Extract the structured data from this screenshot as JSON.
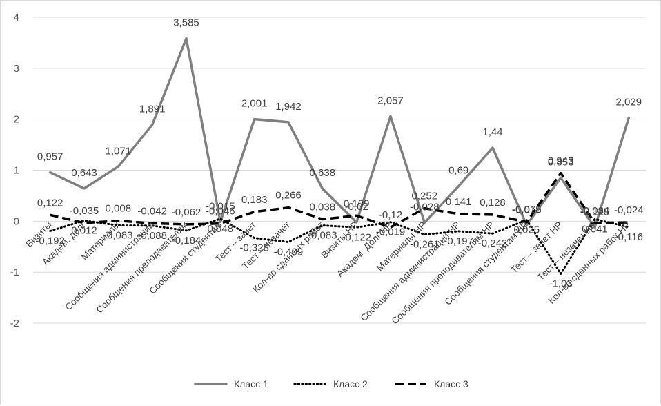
{
  "chart_data": {
    "type": "line",
    "title": "",
    "xlabel": "",
    "ylabel": "",
    "ylim": [
      -2,
      4
    ],
    "yticks": [
      "-2",
      "-1",
      "0",
      "1",
      "2",
      "3",
      "4"
    ],
    "grid": "horizontal",
    "legend_position": "bottom",
    "categories": [
      "Визиты",
      "Академ. долг",
      "Материалы",
      "Сообщения администрации",
      "Сообщения преподавателям",
      "Сообщения студентам",
      "Тест – зачет",
      "Тест – незачет",
      "Кол-во сданных работ",
      "Визиты НР",
      "Академ. Долг НР",
      "Материалы НР",
      "Сообщения администрации НР",
      "Сообщения преподавателям НР",
      "Сообщения студентам НР",
      "Тест – зачет НР",
      "Тест – незачет НР",
      "Кол-во сданных работ НР"
    ],
    "series": [
      {
        "name": "Класс 1",
        "color": "#7f7f7f",
        "style": "solid",
        "values": [
          0.957,
          0.643,
          1.071,
          1.891,
          3.585,
          -0.015,
          2.001,
          1.942,
          0.638,
          -0.02,
          2.057,
          -0.028,
          0.69,
          1.44,
          -0.075,
          0.853,
          -0.125,
          2.029
        ],
        "labels": [
          "0,957",
          "0,643",
          "1,071",
          "1,891",
          "3,585",
          "-0,015",
          "2,001",
          "1,942",
          "0,638",
          "-0,02",
          "2,057",
          "-0,028",
          "0,69",
          "1,44",
          "-0,075",
          "0,853",
          "-0,125",
          "2,029"
        ]
      },
      {
        "name": "Класс 2",
        "color": "#000000",
        "style": "dotted",
        "values": [
          -0.192,
          0.012,
          -0.083,
          -0.088,
          -0.184,
          0.048,
          -0.328,
          -0.409,
          -0.083,
          -0.122,
          -0.019,
          -0.261,
          -0.197,
          -0.242,
          0.025,
          -1.03,
          0.041,
          -0.116
        ],
        "labels": [
          "-0,192",
          "0,012",
          "-0,083",
          "-0,088",
          "-0,184",
          "0,048",
          "-0,328",
          "-0,409",
          "-0,083",
          "-0,122",
          "-0,019",
          "-0,261",
          "-0,197",
          "-0,242",
          "0,025",
          "-1,03",
          "0,041",
          "-0,116"
        ]
      },
      {
        "name": "Класс 3",
        "color": "#000000",
        "style": "dashed",
        "values": [
          0.122,
          -0.035,
          0.008,
          -0.042,
          -0.062,
          -0.046,
          0.183,
          0.266,
          0.038,
          0.109,
          -0.12,
          0.252,
          0.141,
          0.128,
          -0.018,
          0.943,
          -0.034,
          -0.024
        ],
        "labels": [
          "0,122",
          "-0,035",
          "0,008",
          "-0,042",
          "-0,062",
          "-0,046",
          "0,183",
          "0,266",
          "0,038",
          "0,109",
          "-0,12",
          "0,252",
          "0,141",
          "0,128",
          "-0,018",
          "0,943",
          "-0,034",
          "-0,024"
        ]
      }
    ]
  }
}
